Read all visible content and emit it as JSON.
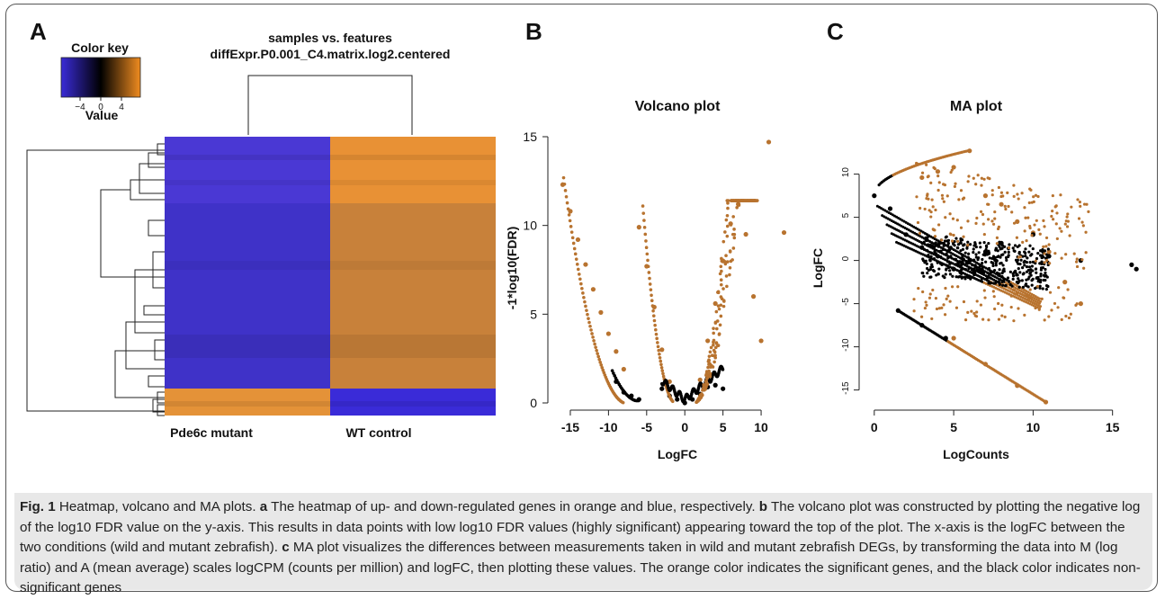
{
  "panels": {
    "a": {
      "letter": "A",
      "colorkey_title": "Color key",
      "colorkey_ticks": [
        "−4",
        "0",
        "4"
      ],
      "colorkey_label": "Value",
      "title_line1": "samples vs. features",
      "title_line2": "diffExpr.P0.001_C4.matrix.log2.centered",
      "col1": "Pde6c mutant",
      "col2": "WT control"
    },
    "b": {
      "letter": "B",
      "title": "Volcano plot",
      "xlabel": "LogFC",
      "ylabel": "-1*log10(FDR)",
      "xticks": [
        "-15",
        "-10",
        "-5",
        "0",
        "5",
        "10"
      ],
      "yticks": [
        "0",
        "5",
        "10",
        "15"
      ]
    },
    "c": {
      "letter": "C",
      "title": "MA plot",
      "xlabel": "LogCounts",
      "ylabel": "LogFC",
      "xticks": [
        "0",
        "5",
        "10",
        "15"
      ],
      "yticks": [
        "-15",
        "-10",
        "-5",
        "0",
        "5",
        "10"
      ]
    }
  },
  "colors": {
    "significant": "#b8732f",
    "nonsignificant": "#000000",
    "heat_low": "#3a2bd8",
    "heat_high": "#f08c20"
  },
  "caption": {
    "fig": "Fig. 1",
    "title": " Heatmap, volcano and MA plots. ",
    "a_letter": "a",
    "a_text": " The heatmap of up- and down-regulated genes in orange and blue, respectively. ",
    "b_letter": "b",
    "b_text": " The volcano plot was constructed by plotting the negative log of the log10 FDR value on the y-axis. This results in data points with low log10 FDR values (highly significant) appearing toward the top of the plot. The x-axis is the logFC between the two conditions (wild and mutant zebrafish). ",
    "c_letter": "c",
    "c_text": " MA plot visualizes the differences between measurements taken in wild and mutant zebrafish DEGs, by transforming the data into M (log ratio) and A (mean average) scales logCPM (counts per million) and logFC, then plotting these values. The orange color indicates the significant genes, and the black color indicates non-significant genes"
  },
  "chart_data": [
    {
      "type": "heatmap",
      "title": "samples vs. features\ndiffExpr.P0.001_C4.matrix.log2.centered",
      "columns": [
        "Pde6c mutant",
        "WT control"
      ],
      "colorkey": {
        "label": "Value",
        "ticks": [
          -4,
          0,
          4
        ],
        "low": "#3a2bd8",
        "mid": "#000000",
        "high": "#f08c20"
      },
      "blocks": [
        {
          "rows_fraction": 0.21,
          "values": [
            -4,
            4
          ]
        },
        {
          "rows_fraction": 0.72,
          "values": [
            -4,
            4
          ]
        },
        {
          "rows_fraction": 0.07,
          "values": [
            4,
            -4
          ]
        }
      ]
    },
    {
      "type": "scatter",
      "title": "Volcano plot",
      "xlabel": "LogFC",
      "ylabel": "-1*log10(FDR)",
      "xlim": [
        -17,
        14
      ],
      "ylim": [
        0,
        15
      ],
      "series": [
        {
          "name": "significant",
          "color": "#b8732f",
          "points": [
            [
              -16,
              12.3
            ],
            [
              -15,
              10.8
            ],
            [
              -14,
              9.2
            ],
            [
              -13,
              7.8
            ],
            [
              -12,
              6.4
            ],
            [
              -11,
              5.1
            ],
            [
              -10,
              3.9
            ],
            [
              -9,
              2.9
            ],
            [
              -8,
              1.9
            ],
            [
              -6,
              9.9
            ],
            [
              -5,
              7.7
            ],
            [
              -4,
              5.4
            ],
            [
              -3,
              3.0
            ],
            [
              -2,
              1.2
            ],
            [
              2,
              1.3
            ],
            [
              3,
              3.5
            ],
            [
              4,
              5.6
            ],
            [
              5,
              8.0
            ],
            [
              6,
              10.1
            ],
            [
              7,
              11.2
            ],
            [
              8,
              9.5
            ],
            [
              9,
              6.0
            ],
            [
              10,
              3.5
            ],
            [
              11,
              14.7
            ],
            [
              13,
              9.6
            ]
          ]
        },
        {
          "name": "non-significant",
          "color": "#000000",
          "points": [
            [
              -9,
              1.2
            ],
            [
              -8,
              0.6
            ],
            [
              -7,
              0.4
            ],
            [
              -6,
              0.2
            ],
            [
              -3,
              0.8
            ],
            [
              -2,
              0.4
            ],
            [
              -1,
              0.2
            ],
            [
              0,
              0.0
            ],
            [
              1,
              0.2
            ],
            [
              2,
              0.5
            ],
            [
              3,
              0.9
            ],
            [
              4,
              1.0
            ],
            [
              5,
              0.8
            ]
          ]
        }
      ]
    },
    {
      "type": "scatter",
      "title": "MA plot",
      "xlabel": "LogCounts",
      "ylabel": "LogFC",
      "xlim": [
        -0.5,
        17
      ],
      "ylim": [
        -16.5,
        13.5
      ],
      "series": [
        {
          "name": "significant",
          "color": "#b8732f",
          "points": [
            [
              3,
              9.6
            ],
            [
              4,
              10.3
            ],
            [
              5,
              10.8
            ],
            [
              6,
              12.7
            ],
            [
              7,
              7.5
            ],
            [
              8,
              6.5
            ],
            [
              9,
              4.5
            ],
            [
              10,
              3.2
            ],
            [
              11,
              1.0
            ],
            [
              12,
              -2.5
            ],
            [
              13,
              -5.0
            ],
            [
              5,
              -9.0
            ],
            [
              7,
              -12.0
            ],
            [
              9,
              -14.5
            ],
            [
              10.8,
              -16.4
            ]
          ]
        },
        {
          "name": "non-significant",
          "color": "#000000",
          "points": [
            [
              0,
              7.5
            ],
            [
              1,
              6.0
            ],
            [
              2,
              3.0
            ],
            [
              3,
              1.5
            ],
            [
              4,
              0.5
            ],
            [
              5,
              -1.0
            ],
            [
              6,
              0.0
            ],
            [
              7,
              1.0
            ],
            [
              8,
              2.0
            ],
            [
              10,
              3.0
            ],
            [
              11,
              0.5
            ],
            [
              13,
              0.0
            ],
            [
              16.2,
              -0.5
            ],
            [
              16.5,
              -1.0
            ],
            [
              1.5,
              -5.8
            ],
            [
              3,
              -7.5
            ],
            [
              4.5,
              -9.0
            ]
          ]
        }
      ]
    }
  ]
}
